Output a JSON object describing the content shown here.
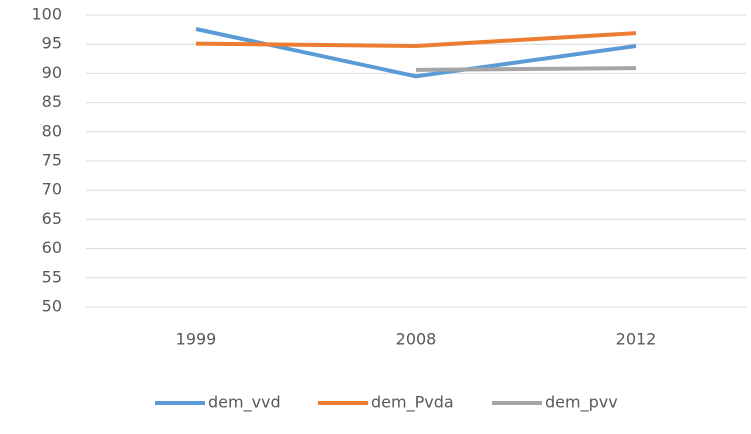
{
  "chart_data": {
    "type": "line",
    "categories": [
      "1999",
      "2008",
      "2012"
    ],
    "series": [
      {
        "name": "dem_vvd",
        "color": "#5b9bd5",
        "values": [
          97.6,
          89.5,
          94.7
        ]
      },
      {
        "name": "dem_Pvda",
        "color": "#ed7d31",
        "values": [
          95.1,
          94.7,
          96.9
        ]
      },
      {
        "name": "dem_pvv",
        "color": "#a5a5a5",
        "values": [
          null,
          90.6,
          90.9
        ]
      }
    ],
    "ylim": [
      50,
      100
    ],
    "yticks": [
      50,
      55,
      60,
      65,
      70,
      75,
      80,
      85,
      90,
      95,
      100
    ],
    "grid": true,
    "legend": "bottom"
  }
}
